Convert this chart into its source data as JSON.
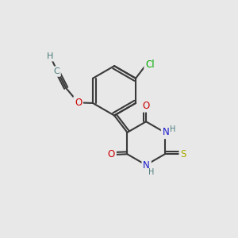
{
  "bg_color": "#e8e8e8",
  "bond_color": "#3a3a3a",
  "bond_lw": 1.5,
  "atom_colors": {
    "O": "#cc0000",
    "N": "#1a1acc",
    "S": "#aaaa00",
    "Cl": "#00aa00",
    "C": "#4a7a7a",
    "H": "#4a7a7a"
  },
  "font_size": 8.5,
  "fig_size": [
    3.0,
    3.0
  ],
  "dpi": 100
}
